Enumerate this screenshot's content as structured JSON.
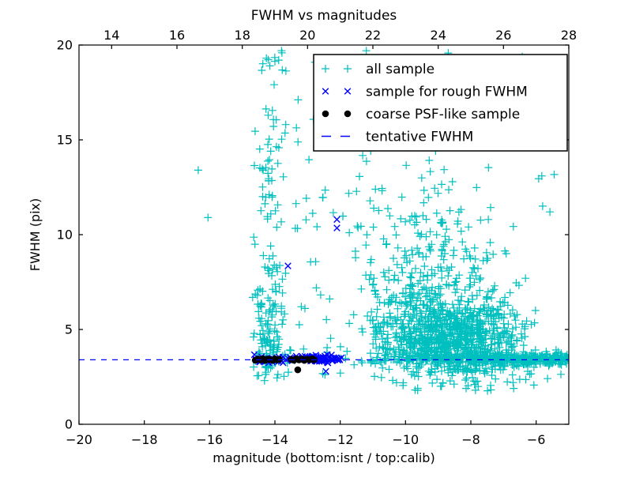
{
  "chart_data": {
    "type": "scatter",
    "title": "FWHM vs magnitudes",
    "xlabel": "magnitude (bottom:isnt / top:calib)",
    "ylabel": "FWHM (pix)",
    "background": "#ffffff",
    "grid": false,
    "seed": 7,
    "x_axis_bottom": {
      "units": "isnt magnitude",
      "range": [
        -20,
        -5
      ],
      "tick_values": [
        -20,
        -18,
        -16,
        -14,
        -12,
        -10,
        -8,
        -6
      ],
      "tick_labels": [
        "−20",
        "−18",
        "−16",
        "−14",
        "−12",
        "−10",
        "−8",
        "−6"
      ]
    },
    "x_axis_top": {
      "units": "calib magnitude",
      "range": [
        13,
        28
      ],
      "offset_from_bottom": 33,
      "tick_values": [
        14,
        16,
        18,
        20,
        22,
        24,
        26,
        28
      ],
      "tick_labels": [
        "14",
        "16",
        "18",
        "20",
        "22",
        "24",
        "26",
        "28"
      ]
    },
    "y_axis": {
      "range": [
        0,
        20
      ],
      "tick_values": [
        0,
        5,
        10,
        15,
        20
      ],
      "tick_labels": [
        "0",
        "5",
        "10",
        "15",
        "20"
      ]
    },
    "tentative_fwhm_value": 3.4,
    "legend": {
      "position": "upper right",
      "entries": [
        {
          "label": "all sample",
          "marker": "plus",
          "color": "#00bfbf"
        },
        {
          "label": "sample for rough FWHM",
          "marker": "x",
          "color": "#0000ff"
        },
        {
          "label": "coarse PSF-like sample",
          "marker": "dot",
          "color": "#000000"
        },
        {
          "label": "tentative FWHM",
          "marker": "dash",
          "color": "#0000ff"
        }
      ]
    },
    "series": [
      {
        "name": "all sample",
        "marker": "plus",
        "color": "#00bfbf",
        "points": [
          [
            -16.35,
            13.4
          ],
          [
            -16.05,
            10.9
          ],
          [
            -13.8,
            19.7
          ],
          [
            -11.2,
            19.7
          ]
        ],
        "clusters": [
          {
            "n": 95,
            "x": {
              "dist": "normal",
              "mu": -14.2,
              "sigma": 0.28,
              "min": -14.72,
              "max": -13.55
            },
            "y": {
              "dist": "normal",
              "mu": 5.0,
              "sigma": 1.6,
              "min": 2.3,
              "max": 9.5
            }
          },
          {
            "n": 55,
            "x": {
              "dist": "normal",
              "mu": -14.15,
              "sigma": 0.3,
              "min": -14.7,
              "max": -13.5
            },
            "y": {
              "dist": "uniform",
              "min": 5.5,
              "max": 14.0
            }
          },
          {
            "n": 28,
            "x": {
              "dist": "normal",
              "mu": -14.1,
              "sigma": 0.35,
              "min": -14.7,
              "max": -13.4
            },
            "y": {
              "dist": "uniform",
              "min": 14.0,
              "max": 19.6
            }
          },
          {
            "n": 70,
            "x": {
              "dist": "uniform",
              "min": -13.4,
              "max": -10.9
            },
            "y": {
              "dist": "uniform",
              "min": 2.6,
              "max": 19.3
            }
          },
          {
            "n": 850,
            "x": {
              "dist": "normal",
              "mu": -8.6,
              "sigma": 1.05,
              "min": -11.2,
              "max": -5.1
            },
            "y": {
              "dist": "normal",
              "mu": 4.4,
              "sigma": 1.05,
              "min": 2.7,
              "max": 7.5
            }
          },
          {
            "n": 320,
            "x": {
              "dist": "normal",
              "mu": -9.2,
              "sigma": 1.1,
              "min": -11.3,
              "max": -5.2
            },
            "y": {
              "dist": "halfnormal",
              "base": 5.0,
              "dir": 1,
              "sigma": 3.2,
              "min": 5.0,
              "max": 19.5
            }
          },
          {
            "n": 50,
            "x": {
              "dist": "uniform",
              "min": -11.5,
              "max": -5.2
            },
            "y": {
              "dist": "uniform",
              "min": 10.0,
              "max": 19.6
            }
          },
          {
            "n": 430,
            "x": {
              "dist": "halfnormal",
              "base": -5.0,
              "dir": -1,
              "sigma": 2.7,
              "min": -14.6,
              "max": -5.02
            },
            "y": {
              "dist": "normal",
              "mu": 3.42,
              "sigma": 0.16,
              "min": 3.0,
              "max": 3.95
            }
          },
          {
            "n": 60,
            "x": {
              "dist": "normal",
              "mu": -8.3,
              "sigma": 1.6,
              "min": -12.6,
              "max": -5.1
            },
            "y": {
              "dist": "uniform",
              "min": 1.7,
              "max": 2.95
            }
          },
          {
            "n": 25,
            "x": {
              "dist": "uniform",
              "min": -14.6,
              "max": -13.4
            },
            "y": {
              "dist": "normal",
              "mu": 3.45,
              "sigma": 0.3,
              "min": 2.6,
              "max": 4.3
            }
          }
        ]
      },
      {
        "name": "sample for rough FWHM",
        "marker": "x",
        "color": "#0000ff",
        "points": [
          [
            -12.1,
            10.8
          ],
          [
            -12.1,
            10.35
          ],
          [
            -13.6,
            8.35
          ],
          [
            -12.44,
            2.79
          ],
          [
            -14.63,
            3.67
          ]
        ],
        "clusters": [
          {
            "n": 60,
            "x": {
              "dist": "uniform",
              "min": -14.6,
              "max": -12.0
            },
            "y": {
              "dist": "normal",
              "mu": 3.45,
              "sigma": 0.1,
              "min": 3.15,
              "max": 3.8
            }
          },
          {
            "n": 45,
            "x": {
              "dist": "normal",
              "mu": -12.55,
              "sigma": 0.3,
              "min": -13.2,
              "max": -11.9
            },
            "y": {
              "dist": "normal",
              "mu": 3.45,
              "sigma": 0.09,
              "min": 3.2,
              "max": 3.75
            }
          }
        ]
      },
      {
        "name": "coarse PSF-like sample",
        "marker": "dot",
        "color": "#000000",
        "points": [
          [
            -14.6,
            3.38
          ],
          [
            -14.52,
            3.44
          ],
          [
            -14.45,
            3.4
          ],
          [
            -14.37,
            3.46
          ],
          [
            -14.3,
            3.37
          ],
          [
            -14.22,
            3.44
          ],
          [
            -14.15,
            3.41
          ],
          [
            -14.07,
            3.37
          ],
          [
            -14.0,
            3.45
          ],
          [
            -13.93,
            3.4
          ],
          [
            -13.87,
            3.43
          ],
          [
            -13.5,
            3.42
          ],
          [
            -13.42,
            3.38
          ],
          [
            -13.34,
            3.45
          ],
          [
            -13.26,
            3.4
          ],
          [
            -13.18,
            3.44
          ],
          [
            -13.1,
            3.37
          ],
          [
            -13.02,
            3.43
          ],
          [
            -12.94,
            3.4
          ],
          [
            -12.86,
            3.45
          ],
          [
            -12.8,
            3.41
          ],
          [
            -13.3,
            2.87
          ]
        ],
        "clusters": []
      },
      {
        "name": "tentative FWHM",
        "marker": "dash-line",
        "color": "#0000ff",
        "line_y": 3.4
      }
    ]
  }
}
